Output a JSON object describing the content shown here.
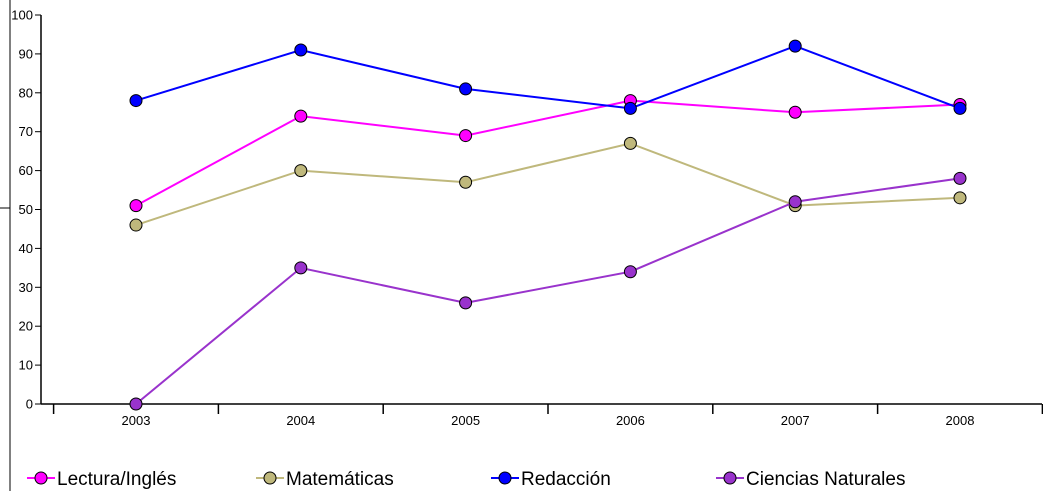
{
  "chart_data": {
    "type": "line",
    "title": "",
    "xlabel": "",
    "ylabel": "",
    "categories": [
      "2003",
      "2004",
      "2005",
      "2006",
      "2007",
      "2008"
    ],
    "ylim": [
      0,
      100
    ],
    "yticks": [
      0,
      10,
      20,
      30,
      40,
      50,
      60,
      70,
      80,
      90,
      100
    ],
    "grid": false,
    "legend_position": "bottom",
    "series": [
      {
        "name": "Lectura/Inglés",
        "color": "#ff00ff",
        "values": [
          51,
          74,
          69,
          78,
          75,
          77
        ]
      },
      {
        "name": "Matemáticas",
        "color": "#bfb87c",
        "values": [
          46,
          60,
          57,
          67,
          51,
          53
        ]
      },
      {
        "name": "Redacción",
        "color": "#0000ff",
        "values": [
          78,
          91,
          81,
          76,
          92,
          76
        ]
      },
      {
        "name": "Ciencias Naturales",
        "color": "#9933cc",
        "values": [
          0,
          35,
          26,
          34,
          52,
          58
        ]
      }
    ]
  }
}
